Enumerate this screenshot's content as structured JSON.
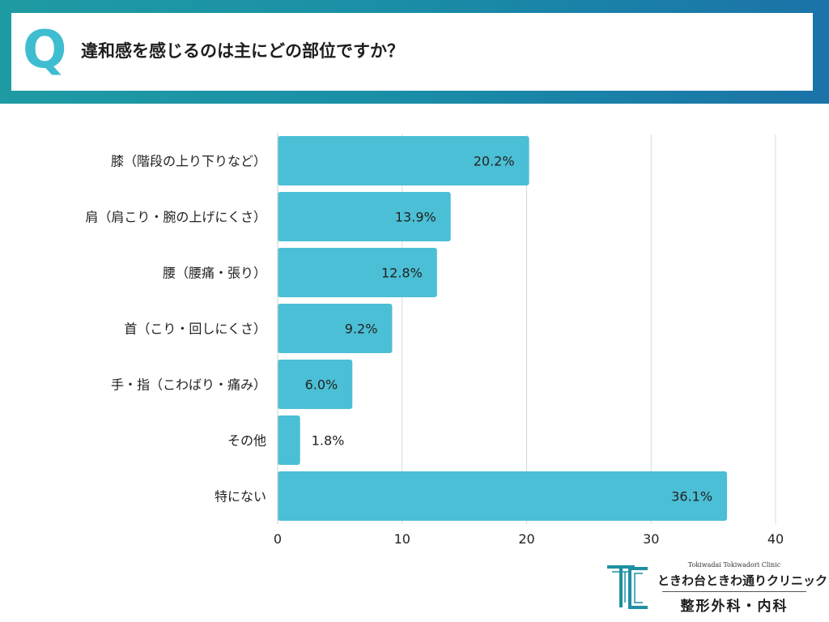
{
  "question": {
    "mark": "Q",
    "text": "違和感を感じるのは主にどの部位ですか？"
  },
  "colors": {
    "bar": "#4bbfd5",
    "grid": "#d9d9d9",
    "header_start": "#1f9ba3",
    "header_end": "#1b73a8",
    "q_mark": "#3fbdd0",
    "logo": "#1f8fa3"
  },
  "chart_data": {
    "type": "bar",
    "orientation": "horizontal",
    "title": "",
    "xlabel": "",
    "ylabel": "",
    "xlim": [
      0,
      40
    ],
    "xticks": [
      0,
      10,
      20,
      30,
      40
    ],
    "grid": true,
    "categories": [
      "膝（階段の上り下りなど）",
      "肩（肩こり・腕の上げにくさ）",
      "腰（腰痛・張り）",
      "首（こり・回しにくさ）",
      "手・指（こわばり・痛み）",
      "その他",
      "特にない"
    ],
    "values": [
      20.2,
      13.9,
      12.8,
      9.2,
      6.0,
      1.8,
      36.1
    ],
    "value_labels": [
      "20.2%",
      "13.9%",
      "12.8%",
      "9.2%",
      "6.0%",
      "1.8%",
      "36.1%"
    ]
  },
  "logo": {
    "mark_icon": "clinic-tc-logo-icon",
    "english_name": "Tokiwadai Tokiwadori Clinic",
    "japanese_name": "ときわ台ときわ通りクリニック",
    "departments": "整形外科・内科"
  }
}
